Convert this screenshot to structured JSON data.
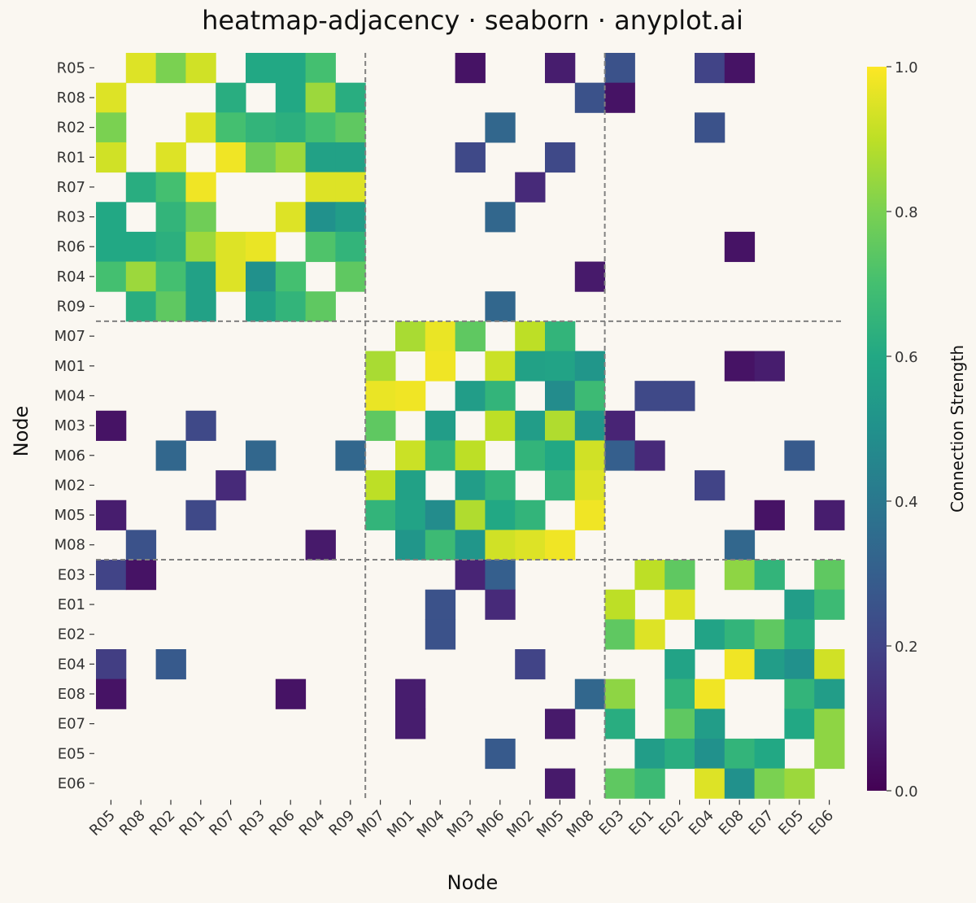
{
  "chart_data": {
    "type": "heatmap",
    "title": "heatmap-adjacency · seaborn · anyplot.ai",
    "xlabel": "Node",
    "ylabel": "Node",
    "nodes": [
      "R05",
      "R08",
      "R02",
      "R01",
      "R07",
      "R03",
      "R06",
      "R04",
      "R09",
      "M07",
      "M01",
      "M04",
      "M03",
      "M06",
      "M02",
      "M05",
      "M08",
      "E03",
      "E01",
      "E02",
      "E04",
      "E08",
      "E07",
      "E05",
      "E06"
    ],
    "group_sizes": [
      9,
      8,
      8
    ],
    "colorbar": {
      "label": "Connection Strength",
      "range": [
        0,
        1
      ],
      "ticks": [
        "0.0",
        "0.2",
        "0.4",
        "0.6",
        "0.8",
        "1.0"
      ],
      "colormap": "viridis"
    },
    "missing_color": "#faf7f1",
    "matrix": [
      [
        null,
        0.95,
        0.8,
        0.93,
        null,
        0.6,
        0.6,
        0.7,
        null,
        null,
        null,
        null,
        0.05,
        null,
        null,
        0.08,
        null,
        0.25,
        null,
        null,
        0.2,
        0.05,
        null,
        null,
        null
      ],
      [
        0.95,
        null,
        null,
        null,
        0.62,
        null,
        0.6,
        0.85,
        0.62,
        null,
        null,
        null,
        null,
        null,
        null,
        null,
        0.25,
        0.05,
        null,
        null,
        null,
        null,
        null,
        null,
        null
      ],
      [
        0.8,
        null,
        null,
        0.95,
        0.7,
        0.65,
        0.63,
        0.7,
        0.75,
        null,
        null,
        null,
        null,
        0.33,
        null,
        null,
        null,
        null,
        null,
        null,
        0.25,
        null,
        null,
        null,
        null
      ],
      [
        0.93,
        null,
        0.95,
        null,
        0.98,
        0.78,
        0.85,
        0.57,
        0.57,
        null,
        null,
        null,
        0.22,
        null,
        null,
        0.22,
        null,
        null,
        null,
        null,
        null,
        null,
        null,
        null,
        null
      ],
      [
        null,
        0.62,
        0.7,
        0.98,
        null,
        null,
        null,
        0.95,
        0.95,
        null,
        null,
        null,
        null,
        null,
        0.12,
        null,
        null,
        null,
        null,
        null,
        null,
        null,
        null,
        null,
        null
      ],
      [
        0.6,
        null,
        0.65,
        0.78,
        null,
        null,
        0.95,
        0.5,
        0.55,
        null,
        null,
        null,
        null,
        0.33,
        null,
        null,
        null,
        null,
        null,
        null,
        null,
        null,
        null,
        null,
        null
      ],
      [
        0.6,
        0.6,
        0.63,
        0.85,
        0.95,
        0.97,
        null,
        0.72,
        0.65,
        null,
        null,
        null,
        null,
        null,
        null,
        null,
        null,
        null,
        null,
        null,
        null,
        0.05,
        null,
        null,
        null
      ],
      [
        0.7,
        0.85,
        0.7,
        0.57,
        0.95,
        0.5,
        0.7,
        null,
        0.75,
        null,
        null,
        null,
        null,
        null,
        null,
        null,
        0.07,
        null,
        null,
        null,
        null,
        null,
        null,
        null,
        null
      ],
      [
        null,
        0.62,
        0.75,
        0.57,
        null,
        0.57,
        0.65,
        0.75,
        null,
        null,
        null,
        null,
        null,
        0.33,
        null,
        null,
        null,
        null,
        null,
        null,
        null,
        null,
        null,
        null,
        null
      ],
      [
        null,
        null,
        null,
        null,
        null,
        null,
        null,
        null,
        null,
        null,
        0.87,
        0.97,
        0.75,
        null,
        0.9,
        0.65,
        null,
        null,
        null,
        null,
        null,
        null,
        null,
        null,
        null
      ],
      [
        null,
        null,
        null,
        null,
        null,
        null,
        null,
        null,
        null,
        0.87,
        null,
        0.98,
        null,
        0.92,
        0.57,
        0.58,
        0.52,
        null,
        null,
        null,
        null,
        0.05,
        0.08,
        null,
        null
      ],
      [
        null,
        null,
        null,
        null,
        null,
        null,
        null,
        null,
        null,
        0.97,
        0.98,
        null,
        0.55,
        0.65,
        null,
        0.48,
        0.68,
        null,
        0.22,
        0.22,
        null,
        null,
        null,
        null,
        null
      ],
      [
        0.05,
        null,
        null,
        0.22,
        null,
        null,
        null,
        null,
        null,
        0.75,
        null,
        0.55,
        null,
        0.9,
        0.55,
        0.88,
        0.52,
        0.1,
        null,
        null,
        null,
        null,
        null,
        null,
        null
      ],
      [
        null,
        null,
        0.33,
        null,
        null,
        0.33,
        null,
        null,
        0.33,
        null,
        0.92,
        0.65,
        0.9,
        null,
        0.65,
        0.6,
        0.93,
        0.3,
        0.12,
        null,
        null,
        null,
        null,
        0.28,
        null
      ],
      [
        null,
        null,
        null,
        null,
        0.12,
        null,
        null,
        null,
        null,
        0.9,
        0.57,
        null,
        0.55,
        0.65,
        null,
        0.65,
        0.95,
        null,
        null,
        null,
        0.2,
        null,
        null,
        null,
        null
      ],
      [
        0.08,
        null,
        null,
        0.22,
        null,
        null,
        null,
        null,
        null,
        0.65,
        0.58,
        0.48,
        0.88,
        0.6,
        0.65,
        null,
        0.98,
        null,
        null,
        null,
        null,
        null,
        0.05,
        null,
        0.08
      ],
      [
        null,
        0.25,
        null,
        null,
        null,
        null,
        null,
        0.07,
        null,
        null,
        0.52,
        0.68,
        0.52,
        0.93,
        0.95,
        0.98,
        null,
        null,
        null,
        null,
        null,
        0.33,
        null,
        null,
        null
      ],
      [
        0.2,
        0.05,
        null,
        null,
        null,
        null,
        null,
        null,
        null,
        null,
        null,
        null,
        0.1,
        0.3,
        null,
        null,
        null,
        null,
        0.9,
        0.75,
        null,
        0.83,
        0.65,
        null,
        0.75
      ],
      [
        null,
        null,
        null,
        null,
        null,
        null,
        null,
        null,
        null,
        null,
        null,
        0.25,
        null,
        0.12,
        null,
        null,
        null,
        0.9,
        null,
        0.95,
        null,
        null,
        null,
        0.55,
        0.68
      ],
      [
        null,
        null,
        null,
        null,
        null,
        null,
        null,
        null,
        null,
        null,
        null,
        0.25,
        null,
        null,
        null,
        null,
        null,
        0.75,
        0.95,
        null,
        0.58,
        0.65,
        0.75,
        0.62,
        null
      ],
      [
        0.18,
        null,
        0.28,
        null,
        null,
        null,
        null,
        null,
        null,
        null,
        null,
        null,
        null,
        null,
        0.2,
        null,
        null,
        null,
        null,
        0.58,
        null,
        0.98,
        0.55,
        0.5,
        0.93
      ],
      [
        0.05,
        null,
        null,
        null,
        null,
        null,
        0.05,
        null,
        null,
        null,
        0.08,
        null,
        null,
        null,
        null,
        null,
        0.33,
        0.83,
        null,
        0.65,
        0.98,
        null,
        null,
        0.65,
        0.55
      ],
      [
        null,
        null,
        null,
        null,
        null,
        null,
        null,
        null,
        null,
        null,
        0.08,
        null,
        null,
        null,
        null,
        0.07,
        null,
        0.62,
        null,
        0.75,
        0.55,
        null,
        null,
        0.6,
        0.83
      ],
      [
        null,
        null,
        null,
        null,
        null,
        null,
        null,
        null,
        null,
        null,
        null,
        null,
        null,
        0.28,
        null,
        null,
        null,
        null,
        0.55,
        0.62,
        0.5,
        0.65,
        0.6,
        null,
        0.83
      ],
      [
        null,
        null,
        null,
        null,
        null,
        null,
        null,
        null,
        null,
        null,
        null,
        null,
        null,
        null,
        null,
        0.07,
        null,
        0.75,
        0.68,
        null,
        0.95,
        0.5,
        0.8,
        0.85,
        null
      ]
    ]
  }
}
